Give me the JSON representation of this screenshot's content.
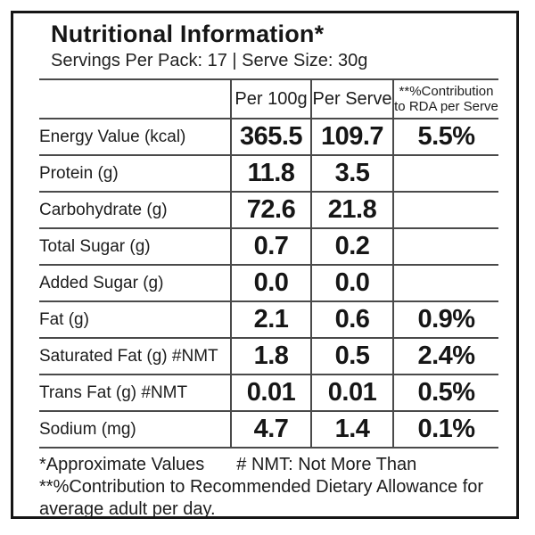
{
  "title": "Nutritional Information*",
  "subtitle": "Servings Per Pack: 17 | Serve Size: 30g",
  "table": {
    "headers": {
      "per_100g": "Per 100g",
      "per_serve": "Per Serve",
      "rda_line1": "**%Contribution",
      "rda_line2": "to RDA per Serve"
    },
    "rows": [
      {
        "label": "Energy Value (kcal)",
        "per_100g": "365.5",
        "per_serve": "109.7",
        "rda": "5.5%"
      },
      {
        "label": "Protein (g)",
        "per_100g": "11.8",
        "per_serve": "3.5",
        "rda": ""
      },
      {
        "label": "Carbohydrate (g)",
        "per_100g": "72.6",
        "per_serve": "21.8",
        "rda": ""
      },
      {
        "label": "Total Sugar (g)",
        "per_100g": "0.7",
        "per_serve": "0.2",
        "rda": ""
      },
      {
        "label": "Added Sugar (g)",
        "per_100g": "0.0",
        "per_serve": "0.0",
        "rda": ""
      },
      {
        "label": "Fat (g)",
        "per_100g": "2.1",
        "per_serve": "0.6",
        "rda": "0.9%"
      },
      {
        "label": "Saturated Fat (g) #NMT",
        "per_100g": "1.8",
        "per_serve": "0.5",
        "rda": "2.4%"
      },
      {
        "label": "Trans Fat (g) #NMT",
        "per_100g": "0.01",
        "per_serve": "0.01",
        "rda": "0.5%"
      },
      {
        "label": "Sodium (mg)",
        "per_100g": "4.7",
        "per_serve": "1.4",
        "rda": "0.1%"
      }
    ]
  },
  "footnotes": {
    "approximate": "*Approximate Values",
    "nmt": "# NMT: Not More Than",
    "rda_note": "**%Contribution to Recommended Dietary Allowance for average adult per day."
  },
  "colors": {
    "text": "#1c1c1c",
    "grid_line": "#4a4a4a",
    "outer_border": "#161616",
    "background": "#ffffff"
  }
}
